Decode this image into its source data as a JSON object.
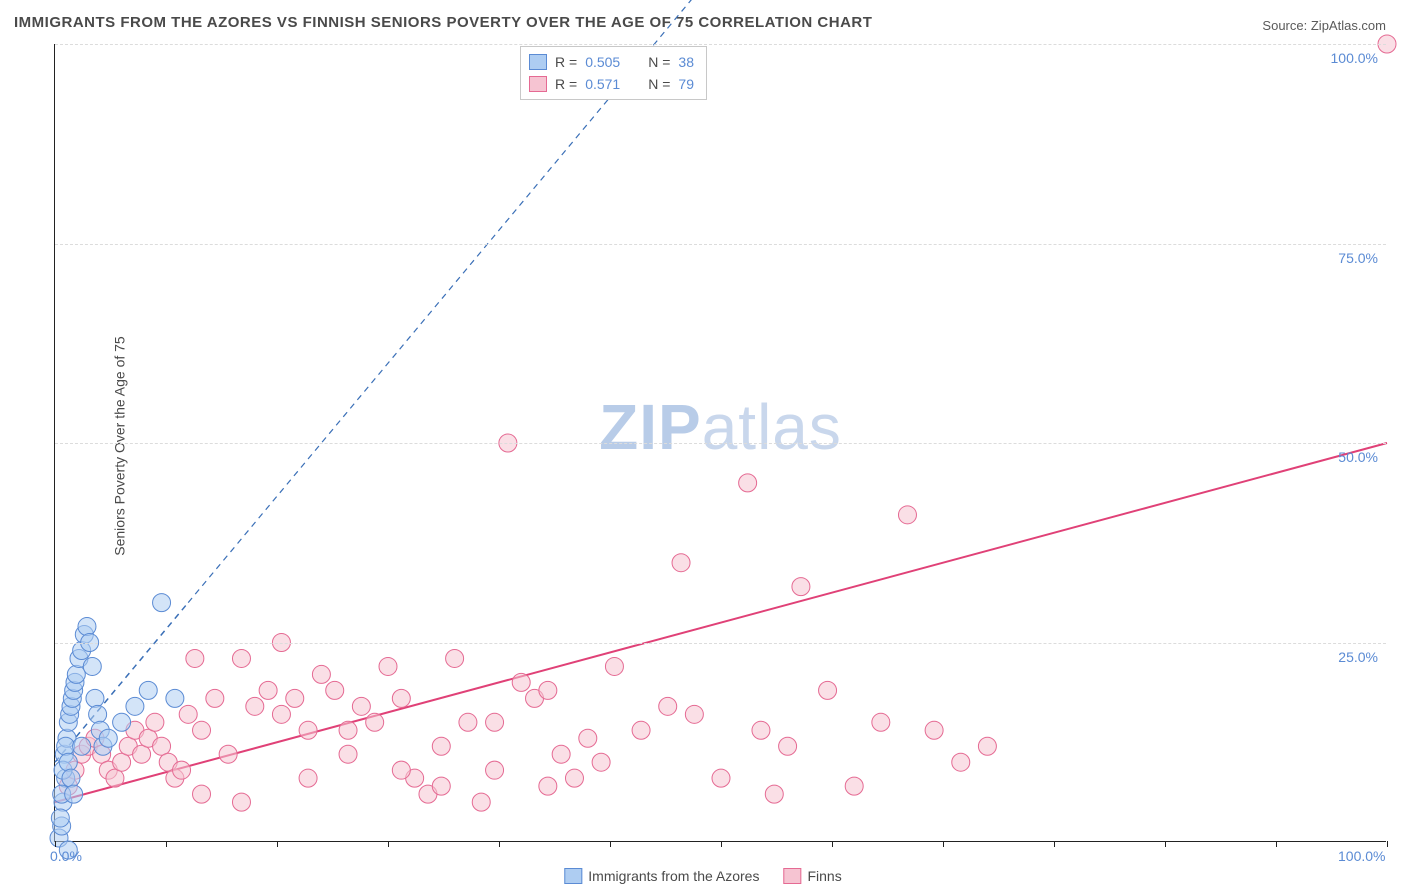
{
  "title": "IMMIGRANTS FROM THE AZORES VS FINNISH SENIORS POVERTY OVER THE AGE OF 75 CORRELATION CHART",
  "source_label": "Source:",
  "source_value": "ZipAtlas.com",
  "y_axis_label": "Seniors Poverty Over the Age of 75",
  "watermark_part1": "ZIP",
  "watermark_part2": "atlas",
  "chart": {
    "type": "scatter",
    "xlim": [
      0,
      100
    ],
    "ylim": [
      0,
      100
    ],
    "x_ticks": [
      0,
      8.33,
      16.67,
      25,
      33.33,
      41.67,
      50,
      58.33,
      66.67,
      75,
      83.33,
      91.67,
      100
    ],
    "x_tick_labels": {
      "0": "0.0%",
      "100": "100.0%"
    },
    "y_grid": [
      25,
      50,
      75,
      100
    ],
    "y_tick_labels": {
      "25": "25.0%",
      "50": "50.0%",
      "75": "75.0%",
      "100": "100.0%"
    },
    "background_color": "#ffffff",
    "grid_color": "#dcdcdc",
    "axis_color": "#222222",
    "tick_label_color": "#5b8bd4",
    "series": [
      {
        "name": "Immigrants from the Azores",
        "color_fill": "#aecdf2",
        "color_stroke": "#5b8bd4",
        "marker_radius": 9,
        "fill_opacity": 0.55,
        "R": "0.505",
        "N": "38",
        "trend": {
          "x1": 0,
          "y1": 10,
          "x2": 10,
          "y2": 30,
          "extend_x2": 72,
          "extend_y2": 154,
          "stroke": "#3a6fb7",
          "dash": "6,5",
          "width": 1.5
        },
        "points": [
          [
            0.3,
            0.5
          ],
          [
            0.5,
            2
          ],
          [
            0.6,
            5
          ],
          [
            0.8,
            8
          ],
          [
            0.7,
            11
          ],
          [
            0.9,
            13
          ],
          [
            1.0,
            15
          ],
          [
            1.1,
            16
          ],
          [
            1.2,
            17
          ],
          [
            1.3,
            18
          ],
          [
            1.4,
            19
          ],
          [
            1.5,
            20
          ],
          [
            1.6,
            21
          ],
          [
            1.8,
            23
          ],
          [
            2.0,
            24
          ],
          [
            2.2,
            26
          ],
          [
            2.4,
            27
          ],
          [
            2.6,
            25
          ],
          [
            2.8,
            22
          ],
          [
            3.0,
            18
          ],
          [
            3.2,
            16
          ],
          [
            3.4,
            14
          ],
          [
            3.6,
            12
          ],
          [
            0.4,
            3
          ],
          [
            0.5,
            6
          ],
          [
            0.6,
            9
          ],
          [
            0.8,
            12
          ],
          [
            1.0,
            10
          ],
          [
            1.2,
            8
          ],
          [
            1.4,
            6
          ],
          [
            2.0,
            12
          ],
          [
            4.0,
            13
          ],
          [
            5.0,
            15
          ],
          [
            6.0,
            17
          ],
          [
            7.0,
            19
          ],
          [
            8.0,
            30
          ],
          [
            9.0,
            18
          ],
          [
            1.0,
            -1
          ]
        ]
      },
      {
        "name": "Finns",
        "color_fill": "#f6c4d2",
        "color_stroke": "#e56a93",
        "marker_radius": 9,
        "fill_opacity": 0.55,
        "R": "0.571",
        "N": "79",
        "trend": {
          "x1": 0,
          "y1": 5,
          "x2": 100,
          "y2": 50,
          "stroke": "#e04177",
          "dash": "",
          "width": 2
        },
        "points": [
          [
            1,
            7
          ],
          [
            1.5,
            9
          ],
          [
            2,
            11
          ],
          [
            2.5,
            12
          ],
          [
            3,
            13
          ],
          [
            3.5,
            11
          ],
          [
            4,
            9
          ],
          [
            4.5,
            8
          ],
          [
            5,
            10
          ],
          [
            5.5,
            12
          ],
          [
            6,
            14
          ],
          [
            6.5,
            11
          ],
          [
            7,
            13
          ],
          [
            7.5,
            15
          ],
          [
            8,
            12
          ],
          [
            8.5,
            10
          ],
          [
            9,
            8
          ],
          [
            9.5,
            9
          ],
          [
            10,
            16
          ],
          [
            10.5,
            23
          ],
          [
            11,
            14
          ],
          [
            12,
            18
          ],
          [
            13,
            11
          ],
          [
            14,
            5
          ],
          [
            15,
            17
          ],
          [
            16,
            19
          ],
          [
            17,
            16
          ],
          [
            18,
            18
          ],
          [
            19,
            14
          ],
          [
            20,
            21
          ],
          [
            21,
            19
          ],
          [
            22,
            11
          ],
          [
            23,
            17
          ],
          [
            24,
            15
          ],
          [
            25,
            22
          ],
          [
            26,
            18
          ],
          [
            27,
            8
          ],
          [
            28,
            6
          ],
          [
            29,
            7
          ],
          [
            30,
            23
          ],
          [
            31,
            15
          ],
          [
            32,
            5
          ],
          [
            33,
            9
          ],
          [
            34,
            50
          ],
          [
            35,
            20
          ],
          [
            36,
            18
          ],
          [
            37,
            19
          ],
          [
            38,
            11
          ],
          [
            39,
            8
          ],
          [
            40,
            13
          ],
          [
            42,
            22
          ],
          [
            44,
            14
          ],
          [
            46,
            17
          ],
          [
            47,
            35
          ],
          [
            48,
            16
          ],
          [
            50,
            8
          ],
          [
            52,
            45
          ],
          [
            53,
            14
          ],
          [
            54,
            6
          ],
          [
            55,
            12
          ],
          [
            56,
            32
          ],
          [
            58,
            19
          ],
          [
            60,
            7
          ],
          [
            62,
            15
          ],
          [
            64,
            41
          ],
          [
            66,
            14
          ],
          [
            68,
            10
          ],
          [
            70,
            12
          ],
          [
            100,
            100
          ],
          [
            11,
            6
          ],
          [
            14,
            23
          ],
          [
            17,
            25
          ],
          [
            19,
            8
          ],
          [
            22,
            14
          ],
          [
            26,
            9
          ],
          [
            29,
            12
          ],
          [
            33,
            15
          ],
          [
            37,
            7
          ],
          [
            41,
            10
          ]
        ]
      }
    ],
    "legend_top": {
      "rows": [
        {
          "swatch_fill": "#aecdf2",
          "swatch_stroke": "#5b8bd4",
          "r_label": "R =",
          "r_val": "0.505",
          "n_label": "N =",
          "n_val": "38"
        },
        {
          "swatch_fill": "#f6c4d2",
          "swatch_stroke": "#e56a93",
          "r_label": "R =",
          "r_val": "0.571",
          "n_label": "N =",
          "n_val": "79"
        }
      ]
    },
    "legend_bottom": [
      {
        "swatch_fill": "#aecdf2",
        "swatch_stroke": "#5b8bd4",
        "label": "Immigrants from the Azores"
      },
      {
        "swatch_fill": "#f6c4d2",
        "swatch_stroke": "#e56a93",
        "label": "Finns"
      }
    ]
  }
}
